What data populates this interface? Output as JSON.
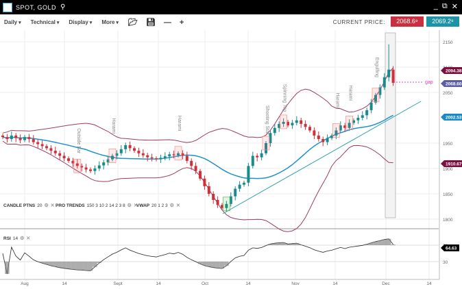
{
  "window": {
    "title": "SPOT, GOLD"
  },
  "toolbar": {
    "menus": [
      "Daily",
      "Technical",
      "Display",
      "More"
    ],
    "current_price_label": "CURRENT PRICE:",
    "sell_price": "2068.6⁹",
    "buy_price": "2069.2⁹"
  },
  "indicators": {
    "candle": {
      "name": "CANDLE PTNS",
      "params": "20"
    },
    "pro": {
      "name": "PRO TRENDS",
      "params": "150 3 10 2 14 2 3 8"
    },
    "vwap": {
      "name": "VWAP",
      "params": "20 1 2 3"
    },
    "rsi": {
      "name": "RSI",
      "params": "14"
    }
  },
  "chart_data": {
    "type": "candlestick",
    "y_ticks": [
      1800,
      1850,
      1900,
      1950,
      2050,
      2100,
      2150
    ],
    "rsi_ticks": [
      30,
      70
    ],
    "x_labels": [
      "Aug",
      "14",
      "Sept",
      "14",
      "Oct",
      "14",
      "Nov",
      "14",
      "Dec",
      "14"
    ],
    "closes": [
      1962,
      1958,
      1965,
      1960,
      1956,
      1962,
      1958,
      1952,
      1948,
      1944,
      1940,
      1935,
      1930,
      1925,
      1920,
      1915,
      1910,
      1905,
      1902,
      1898,
      1895,
      1900,
      1906,
      1912,
      1918,
      1925,
      1930,
      1938,
      1946,
      1940,
      1935,
      1930,
      1926,
      1922,
      1920,
      1918,
      1921,
      1924,
      1928,
      1926,
      1930,
      1925,
      1915,
      1905,
      1895,
      1880,
      1865,
      1850,
      1838,
      1828,
      1822,
      1830,
      1845,
      1860,
      1868,
      1872,
      1905,
      1925,
      1922,
      1930,
      1950,
      1970,
      1980,
      1988,
      1992,
      1985,
      1990,
      1995,
      1988,
      1982,
      1975,
      1965,
      1958,
      1952,
      1960,
      1965,
      1975,
      1985,
      1980,
      1990,
      1995,
      2000,
      2005,
      2015,
      2030,
      2045,
      2060,
      2080,
      2095,
      2069
    ],
    "patterns": [
      "Outside Bar",
      "Harami",
      "Harami",
      "Shooting Star",
      "Spinning Top",
      "Harami",
      "Harami",
      "Harami",
      "Engulfing"
    ],
    "gap_label": "gap",
    "price_tags": [
      {
        "value": "2094.38",
        "color": "#7a1040"
      },
      {
        "value": "2068.60",
        "color": "#5b5ea6"
      },
      {
        "value": "2002.53",
        "color": "#1a8ac6"
      },
      {
        "value": "1910.67",
        "color": "#7a1040"
      }
    ],
    "rsi_tag": {
      "value": "64.63",
      "color": "#000000"
    },
    "colors": {
      "up": "#1b8a8c",
      "down": "#d0303a",
      "bands": "#9c3a66",
      "vwap": "#1f8fd0",
      "trend": "#2aa0a8",
      "gap": "#d040d0"
    }
  }
}
